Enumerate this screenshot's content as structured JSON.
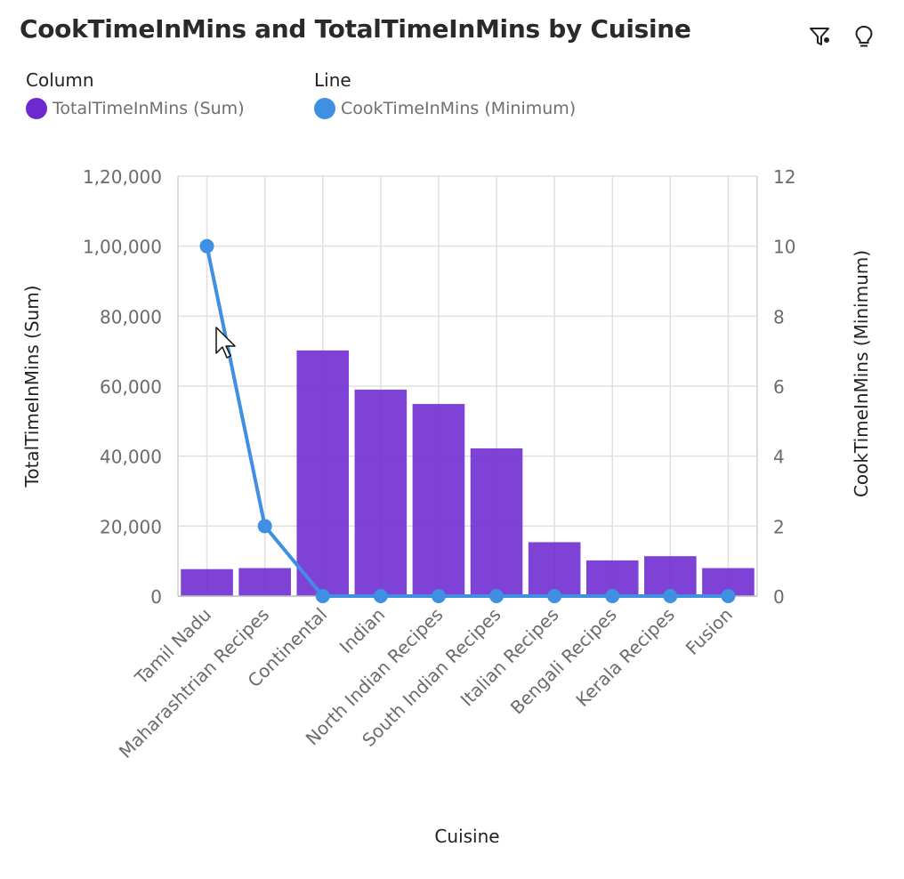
{
  "title": "CookTimeInMins and TotalTimeInMins by Cuisine",
  "toolbar": {
    "filter_icon": "filter-icon",
    "insight_icon": "lightbulb-icon"
  },
  "legend": {
    "column_heading": "Column",
    "column_series": "TotalTimeInMins (Sum)",
    "line_heading": "Line",
    "line_series": "CookTimeInMins (Minimum)"
  },
  "colors": {
    "bar": "#6d28d0",
    "line": "#3f8fe3",
    "grid": "#e0e0e0",
    "axis_text": "#6b6b6b"
  },
  "chart_data": {
    "type": "bar",
    "xlabel": "Cuisine",
    "ylabel_left": "TotalTimeInMins (Sum)",
    "ylabel_right": "CookTimeInMins (Minimum)",
    "categories": [
      "Tamil Nadu",
      "Maharashtrian Recipes",
      "Continental",
      "Indian",
      "North Indian Recipes",
      "South Indian Recipes",
      "Italian Recipes",
      "Bengali Recipes",
      "Kerala Recipes",
      "Fusion"
    ],
    "series": [
      {
        "name": "TotalTimeInMins (Sum)",
        "type": "bar",
        "axis": "left",
        "values": [
          7700,
          8000,
          70200,
          59000,
          54900,
          42200,
          15400,
          10200,
          11400,
          8000
        ]
      },
      {
        "name": "CookTimeInMins (Minimum)",
        "type": "line",
        "axis": "right",
        "values": [
          10,
          2,
          0,
          0,
          0,
          0,
          0,
          0,
          0,
          0
        ]
      }
    ],
    "ylim_left": [
      0,
      120000
    ],
    "ylim_right": [
      0,
      12
    ],
    "yticks_left": [
      "0",
      "20,000",
      "40,000",
      "60,000",
      "80,000",
      "1,00,000",
      "1,20,000"
    ],
    "yticks_right": [
      "0",
      "2",
      "4",
      "6",
      "8",
      "10",
      "12"
    ],
    "grid": true,
    "legend_position": "top-left"
  }
}
